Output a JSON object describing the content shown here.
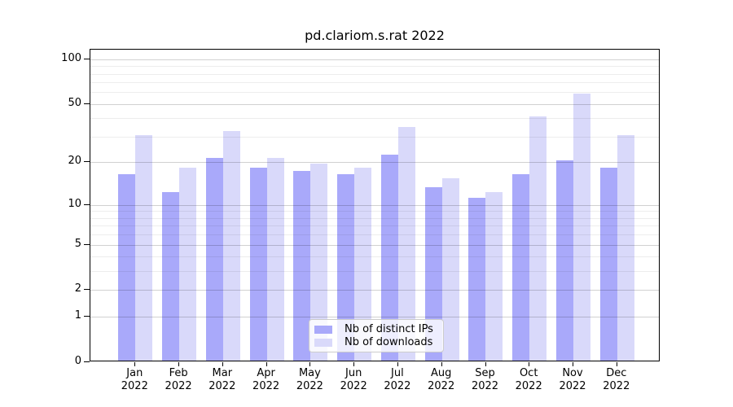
{
  "title": "pd.clariom.s.rat 2022",
  "chart_data": {
    "type": "bar",
    "title": "pd.clariom.s.rat 2022",
    "categories": [
      "Jan",
      "Feb",
      "Mar",
      "Apr",
      "May",
      "Jun",
      "Jul",
      "Aug",
      "Sep",
      "Oct",
      "Nov",
      "Dec"
    ],
    "year": "2022",
    "series": [
      {
        "name": "Nb of distinct IPs",
        "color": "#a9a9fa",
        "values": [
          16,
          12,
          21,
          18,
          17,
          16,
          22,
          13,
          11,
          16,
          20,
          18
        ]
      },
      {
        "name": "Nb of downloads",
        "color": "#d9d9fa",
        "values": [
          30,
          18,
          32,
          21,
          19,
          18,
          34,
          15,
          12,
          40,
          57,
          30
        ]
      }
    ],
    "xlabel": "",
    "ylabel": "",
    "y_scale": "log10(1+v)",
    "y_tick_labels": [
      "0",
      "1",
      "2",
      "5",
      "10",
      "20",
      "50",
      "100"
    ],
    "y_ticks": [
      0,
      1,
      2,
      5,
      10,
      20,
      50,
      100
    ],
    "y_minor_gridlines": [
      3,
      4,
      6,
      7,
      8,
      9,
      30,
      40,
      60,
      70,
      80,
      90
    ],
    "ylim": [
      0,
      116
    ],
    "grid": "horizontal, major and minor, drawn over bars",
    "legend_position": "bottom-center"
  },
  "legend": {
    "items": [
      {
        "label": "Nb of distinct IPs",
        "color": "#a9a9fa"
      },
      {
        "label": "Nb of downloads",
        "color": "#d9d9fa"
      }
    ]
  },
  "colors": {
    "bar_distinct_ips": "#a9a9fa",
    "bar_downloads": "#d9d9fa",
    "axis": "#000000",
    "major_grid": "#d1d1d1",
    "minor_grid": "#ebebeb",
    "background": "#ffffff"
  }
}
